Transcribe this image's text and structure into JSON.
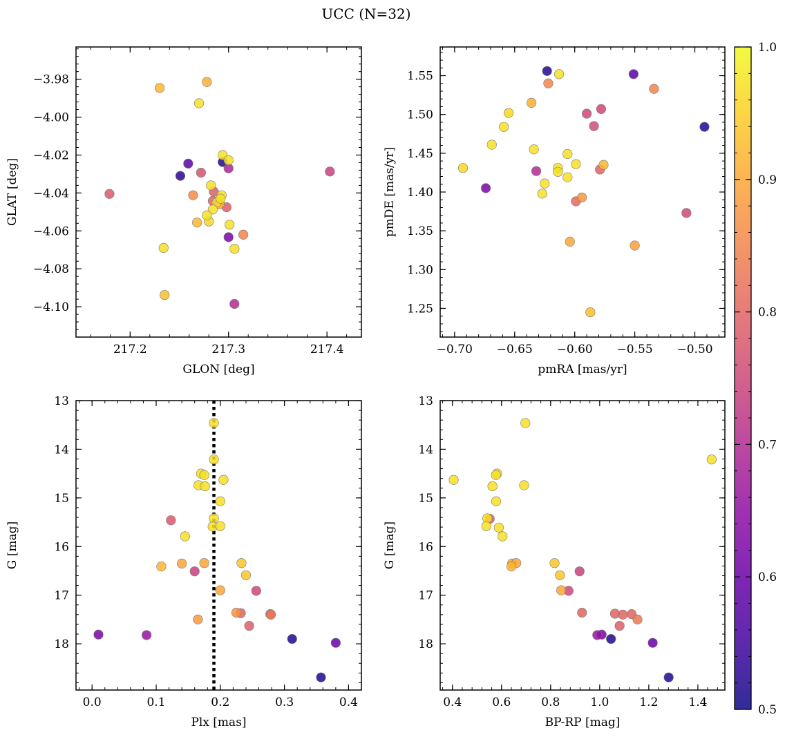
{
  "figure": {
    "title": "UCC (N=32)"
  },
  "colorbar": {
    "colormap": "plasma",
    "range": [
      0.5,
      1.0
    ],
    "ticks": [
      "0.5",
      "0.6",
      "0.7",
      "0.8",
      "0.9",
      "1.0"
    ]
  },
  "chart_data": [
    {
      "type": "scatter",
      "xlabel": "GLON [deg]",
      "ylabel": "GLAT [deg]",
      "xlim": [
        217.145,
        217.435
      ],
      "ylim": [
        -4.116,
        -3.963
      ],
      "xticks": [
        "217.2",
        "217.3",
        "217.4"
      ],
      "yticks": [
        "−3.98",
        "−4.00",
        "−4.02",
        "−4.04",
        "−4.06",
        "−4.08",
        "−4.10"
      ],
      "points": [
        {
          "x": 217.23,
          "y": -3.9846,
          "c": 0.92
        },
        {
          "x": 217.278,
          "y": -3.9815,
          "c": 0.91
        },
        {
          "x": 217.27,
          "y": -3.9927,
          "c": 0.97
        },
        {
          "x": 217.259,
          "y": -4.0245,
          "c": 0.58
        },
        {
          "x": 217.251,
          "y": -4.031,
          "c": 0.53
        },
        {
          "x": 217.272,
          "y": -4.0293,
          "c": 0.77
        },
        {
          "x": 217.294,
          "y": -4.02,
          "c": 0.97
        },
        {
          "x": 217.294,
          "y": -4.0237,
          "c": 0.52
        },
        {
          "x": 217.3,
          "y": -4.0227,
          "c": 0.97
        },
        {
          "x": 217.3,
          "y": -4.027,
          "c": 0.69
        },
        {
          "x": 217.282,
          "y": -4.036,
          "c": 0.97
        },
        {
          "x": 217.285,
          "y": -4.0393,
          "c": 0.79
        },
        {
          "x": 217.179,
          "y": -4.0405,
          "c": 0.78
        },
        {
          "x": 217.403,
          "y": -4.0287,
          "c": 0.74
        },
        {
          "x": 217.264,
          "y": -4.0412,
          "c": 0.86
        },
        {
          "x": 217.293,
          "y": -4.0412,
          "c": 0.97
        },
        {
          "x": 217.284,
          "y": -4.0442,
          "c": 0.8
        },
        {
          "x": 217.288,
          "y": -4.045,
          "c": 0.96
        },
        {
          "x": 217.292,
          "y": -4.043,
          "c": 0.97
        },
        {
          "x": 217.291,
          "y": -4.0458,
          "c": 0.9
        },
        {
          "x": 217.298,
          "y": -4.0475,
          "c": 0.79
        },
        {
          "x": 217.284,
          "y": -4.0487,
          "c": 0.97
        },
        {
          "x": 217.278,
          "y": -4.0518,
          "c": 0.97
        },
        {
          "x": 217.268,
          "y": -4.0556,
          "c": 0.92
        },
        {
          "x": 217.28,
          "y": -4.055,
          "c": 0.96
        },
        {
          "x": 217.301,
          "y": -4.0567,
          "c": 0.97
        },
        {
          "x": 217.315,
          "y": -4.062,
          "c": 0.85
        },
        {
          "x": 217.3,
          "y": -4.0633,
          "c": 0.62
        },
        {
          "x": 217.306,
          "y": -4.0694,
          "c": 0.97
        },
        {
          "x": 217.234,
          "y": -4.069,
          "c": 0.97
        },
        {
          "x": 217.235,
          "y": -4.0938,
          "c": 0.93
        },
        {
          "x": 217.306,
          "y": -4.0985,
          "c": 0.7
        }
      ]
    },
    {
      "type": "scatter",
      "xlabel": "pmRA [mas/yr]",
      "ylabel": "pmDE [mas/yr]",
      "xlim": [
        -0.712,
        -0.475
      ],
      "ylim": [
        1.213,
        1.587
      ],
      "xticks": [
        "−0.70",
        "−0.65",
        "−0.60",
        "−0.55",
        "−0.50"
      ],
      "yticks": [
        "1.25",
        "1.30",
        "1.35",
        "1.40",
        "1.45",
        "1.50",
        "1.55"
      ],
      "points": [
        {
          "x": -0.623,
          "y": 1.556,
          "c": 0.52
        },
        {
          "x": -0.613,
          "y": 1.552,
          "c": 0.97
        },
        {
          "x": -0.551,
          "y": 1.552,
          "c": 0.58
        },
        {
          "x": -0.622,
          "y": 1.54,
          "c": 0.85
        },
        {
          "x": -0.534,
          "y": 1.533,
          "c": 0.85
        },
        {
          "x": -0.636,
          "y": 1.515,
          "c": 0.91
        },
        {
          "x": -0.578,
          "y": 1.507,
          "c": 0.75
        },
        {
          "x": -0.59,
          "y": 1.501,
          "c": 0.75
        },
        {
          "x": -0.655,
          "y": 1.502,
          "c": 0.96
        },
        {
          "x": -0.659,
          "y": 1.484,
          "c": 0.97
        },
        {
          "x": -0.584,
          "y": 1.485,
          "c": 0.76
        },
        {
          "x": -0.492,
          "y": 1.484,
          "c": 0.52
        },
        {
          "x": -0.669,
          "y": 1.461,
          "c": 0.97
        },
        {
          "x": -0.634,
          "y": 1.455,
          "c": 0.97
        },
        {
          "x": -0.606,
          "y": 1.449,
          "c": 0.97
        },
        {
          "x": -0.693,
          "y": 1.431,
          "c": 0.96
        },
        {
          "x": -0.599,
          "y": 1.436,
          "c": 0.97
        },
        {
          "x": -0.576,
          "y": 1.435,
          "c": 0.92
        },
        {
          "x": -0.614,
          "y": 1.431,
          "c": 0.97
        },
        {
          "x": -0.614,
          "y": 1.426,
          "c": 0.97
        },
        {
          "x": -0.632,
          "y": 1.427,
          "c": 0.7
        },
        {
          "x": -0.579,
          "y": 1.429,
          "c": 0.8
        },
        {
          "x": -0.606,
          "y": 1.419,
          "c": 0.97
        },
        {
          "x": -0.625,
          "y": 1.411,
          "c": 0.97
        },
        {
          "x": -0.674,
          "y": 1.405,
          "c": 0.62
        },
        {
          "x": -0.627,
          "y": 1.398,
          "c": 0.97
        },
        {
          "x": -0.594,
          "y": 1.393,
          "c": 0.88
        },
        {
          "x": -0.599,
          "y": 1.388,
          "c": 0.81
        },
        {
          "x": -0.507,
          "y": 1.373,
          "c": 0.75
        },
        {
          "x": -0.604,
          "y": 1.336,
          "c": 0.9
        },
        {
          "x": -0.55,
          "y": 1.331,
          "c": 0.89
        },
        {
          "x": -0.587,
          "y": 1.245,
          "c": 0.93
        }
      ]
    },
    {
      "type": "scatter",
      "xlabel": "Plx [mas]",
      "ylabel": "G [mag]",
      "xlim": [
        -0.025,
        0.42
      ],
      "ylim": [
        18.95,
        13.0
      ],
      "y_inverted": true,
      "xticks": [
        "0.0",
        "0.1",
        "0.2",
        "0.3",
        "0.4"
      ],
      "yticks": [
        "13",
        "14",
        "15",
        "16",
        "17",
        "18"
      ],
      "vline": {
        "x": 0.19,
        "style": "dotted",
        "color": "#000000"
      },
      "points": [
        {
          "x": 0.19,
          "y": 13.46,
          "c": 0.97
        },
        {
          "x": 0.19,
          "y": 14.21,
          "c": 0.97
        },
        {
          "x": 0.17,
          "y": 14.5,
          "c": 0.97
        },
        {
          "x": 0.175,
          "y": 14.53,
          "c": 0.97
        },
        {
          "x": 0.205,
          "y": 14.63,
          "c": 0.97
        },
        {
          "x": 0.166,
          "y": 14.74,
          "c": 0.97
        },
        {
          "x": 0.176,
          "y": 14.76,
          "c": 0.97
        },
        {
          "x": 0.2,
          "y": 15.07,
          "c": 0.97
        },
        {
          "x": 0.19,
          "y": 15.42,
          "c": 0.97
        },
        {
          "x": 0.123,
          "y": 15.46,
          "c": 0.78
        },
        {
          "x": 0.188,
          "y": 15.59,
          "c": 0.97
        },
        {
          "x": 0.2,
          "y": 15.58,
          "c": 0.97
        },
        {
          "x": 0.145,
          "y": 15.79,
          "c": 0.97
        },
        {
          "x": 0.14,
          "y": 16.35,
          "c": 0.9
        },
        {
          "x": 0.175,
          "y": 16.34,
          "c": 0.9
        },
        {
          "x": 0.233,
          "y": 16.34,
          "c": 0.94
        },
        {
          "x": 0.108,
          "y": 16.41,
          "c": 0.92
        },
        {
          "x": 0.16,
          "y": 16.51,
          "c": 0.74
        },
        {
          "x": 0.24,
          "y": 16.59,
          "c": 0.94
        },
        {
          "x": 0.2,
          "y": 16.9,
          "c": 0.9
        },
        {
          "x": 0.256,
          "y": 16.91,
          "c": 0.75
        },
        {
          "x": 0.225,
          "y": 17.36,
          "c": 0.87
        },
        {
          "x": 0.232,
          "y": 17.37,
          "c": 0.8
        },
        {
          "x": 0.278,
          "y": 17.39,
          "c": 0.8
        },
        {
          "x": 0.279,
          "y": 17.4,
          "c": 0.83
        },
        {
          "x": 0.165,
          "y": 17.5,
          "c": 0.88
        },
        {
          "x": 0.245,
          "y": 17.63,
          "c": 0.79
        },
        {
          "x": 0.01,
          "y": 17.81,
          "c": 0.62
        },
        {
          "x": 0.085,
          "y": 17.82,
          "c": 0.66
        },
        {
          "x": 0.312,
          "y": 17.9,
          "c": 0.52
        },
        {
          "x": 0.38,
          "y": 17.98,
          "c": 0.6
        },
        {
          "x": 0.357,
          "y": 18.69,
          "c": 0.52
        }
      ]
    },
    {
      "type": "scatter",
      "xlabel": "BP-RP [mag]",
      "ylabel": "G [mag]",
      "xlim": [
        0.35,
        1.51
      ],
      "ylim": [
        18.95,
        13.0
      ],
      "y_inverted": true,
      "xticks": [
        "0.4",
        "0.6",
        "0.8",
        "1.0",
        "1.2",
        "1.4"
      ],
      "yticks": [
        "13",
        "14",
        "15",
        "16",
        "17",
        "18"
      ],
      "points": [
        {
          "x": 0.697,
          "y": 13.46,
          "c": 0.97
        },
        {
          "x": 1.456,
          "y": 14.21,
          "c": 0.97
        },
        {
          "x": 0.582,
          "y": 14.5,
          "c": 0.97
        },
        {
          "x": 0.577,
          "y": 14.53,
          "c": 0.97
        },
        {
          "x": 0.405,
          "y": 14.63,
          "c": 0.97
        },
        {
          "x": 0.563,
          "y": 14.76,
          "c": 0.97
        },
        {
          "x": 0.692,
          "y": 14.74,
          "c": 0.97
        },
        {
          "x": 0.578,
          "y": 15.07,
          "c": 0.97
        },
        {
          "x": 0.552,
          "y": 15.43,
          "c": 0.78
        },
        {
          "x": 0.542,
          "y": 15.42,
          "c": 0.97
        },
        {
          "x": 0.538,
          "y": 15.58,
          "c": 0.97
        },
        {
          "x": 0.589,
          "y": 15.61,
          "c": 0.97
        },
        {
          "x": 0.604,
          "y": 15.79,
          "c": 0.97
        },
        {
          "x": 0.816,
          "y": 16.34,
          "c": 0.94
        },
        {
          "x": 0.643,
          "y": 16.35,
          "c": 0.9
        },
        {
          "x": 0.66,
          "y": 16.34,
          "c": 0.9
        },
        {
          "x": 0.64,
          "y": 16.41,
          "c": 0.92
        },
        {
          "x": 0.918,
          "y": 16.51,
          "c": 0.74
        },
        {
          "x": 0.838,
          "y": 16.59,
          "c": 0.94
        },
        {
          "x": 0.843,
          "y": 16.9,
          "c": 0.9
        },
        {
          "x": 0.873,
          "y": 16.91,
          "c": 0.75
        },
        {
          "x": 0.928,
          "y": 17.36,
          "c": 0.8
        },
        {
          "x": 1.062,
          "y": 17.38,
          "c": 0.8
        },
        {
          "x": 1.094,
          "y": 17.4,
          "c": 0.8
        },
        {
          "x": 1.13,
          "y": 17.39,
          "c": 0.8
        },
        {
          "x": 1.154,
          "y": 17.5,
          "c": 0.83
        },
        {
          "x": 1.081,
          "y": 17.63,
          "c": 0.79
        },
        {
          "x": 0.99,
          "y": 17.82,
          "c": 0.66
        },
        {
          "x": 1.008,
          "y": 17.81,
          "c": 0.62
        },
        {
          "x": 1.046,
          "y": 17.9,
          "c": 0.52
        },
        {
          "x": 1.216,
          "y": 17.98,
          "c": 0.6
        },
        {
          "x": 1.281,
          "y": 18.69,
          "c": 0.52
        }
      ]
    }
  ]
}
